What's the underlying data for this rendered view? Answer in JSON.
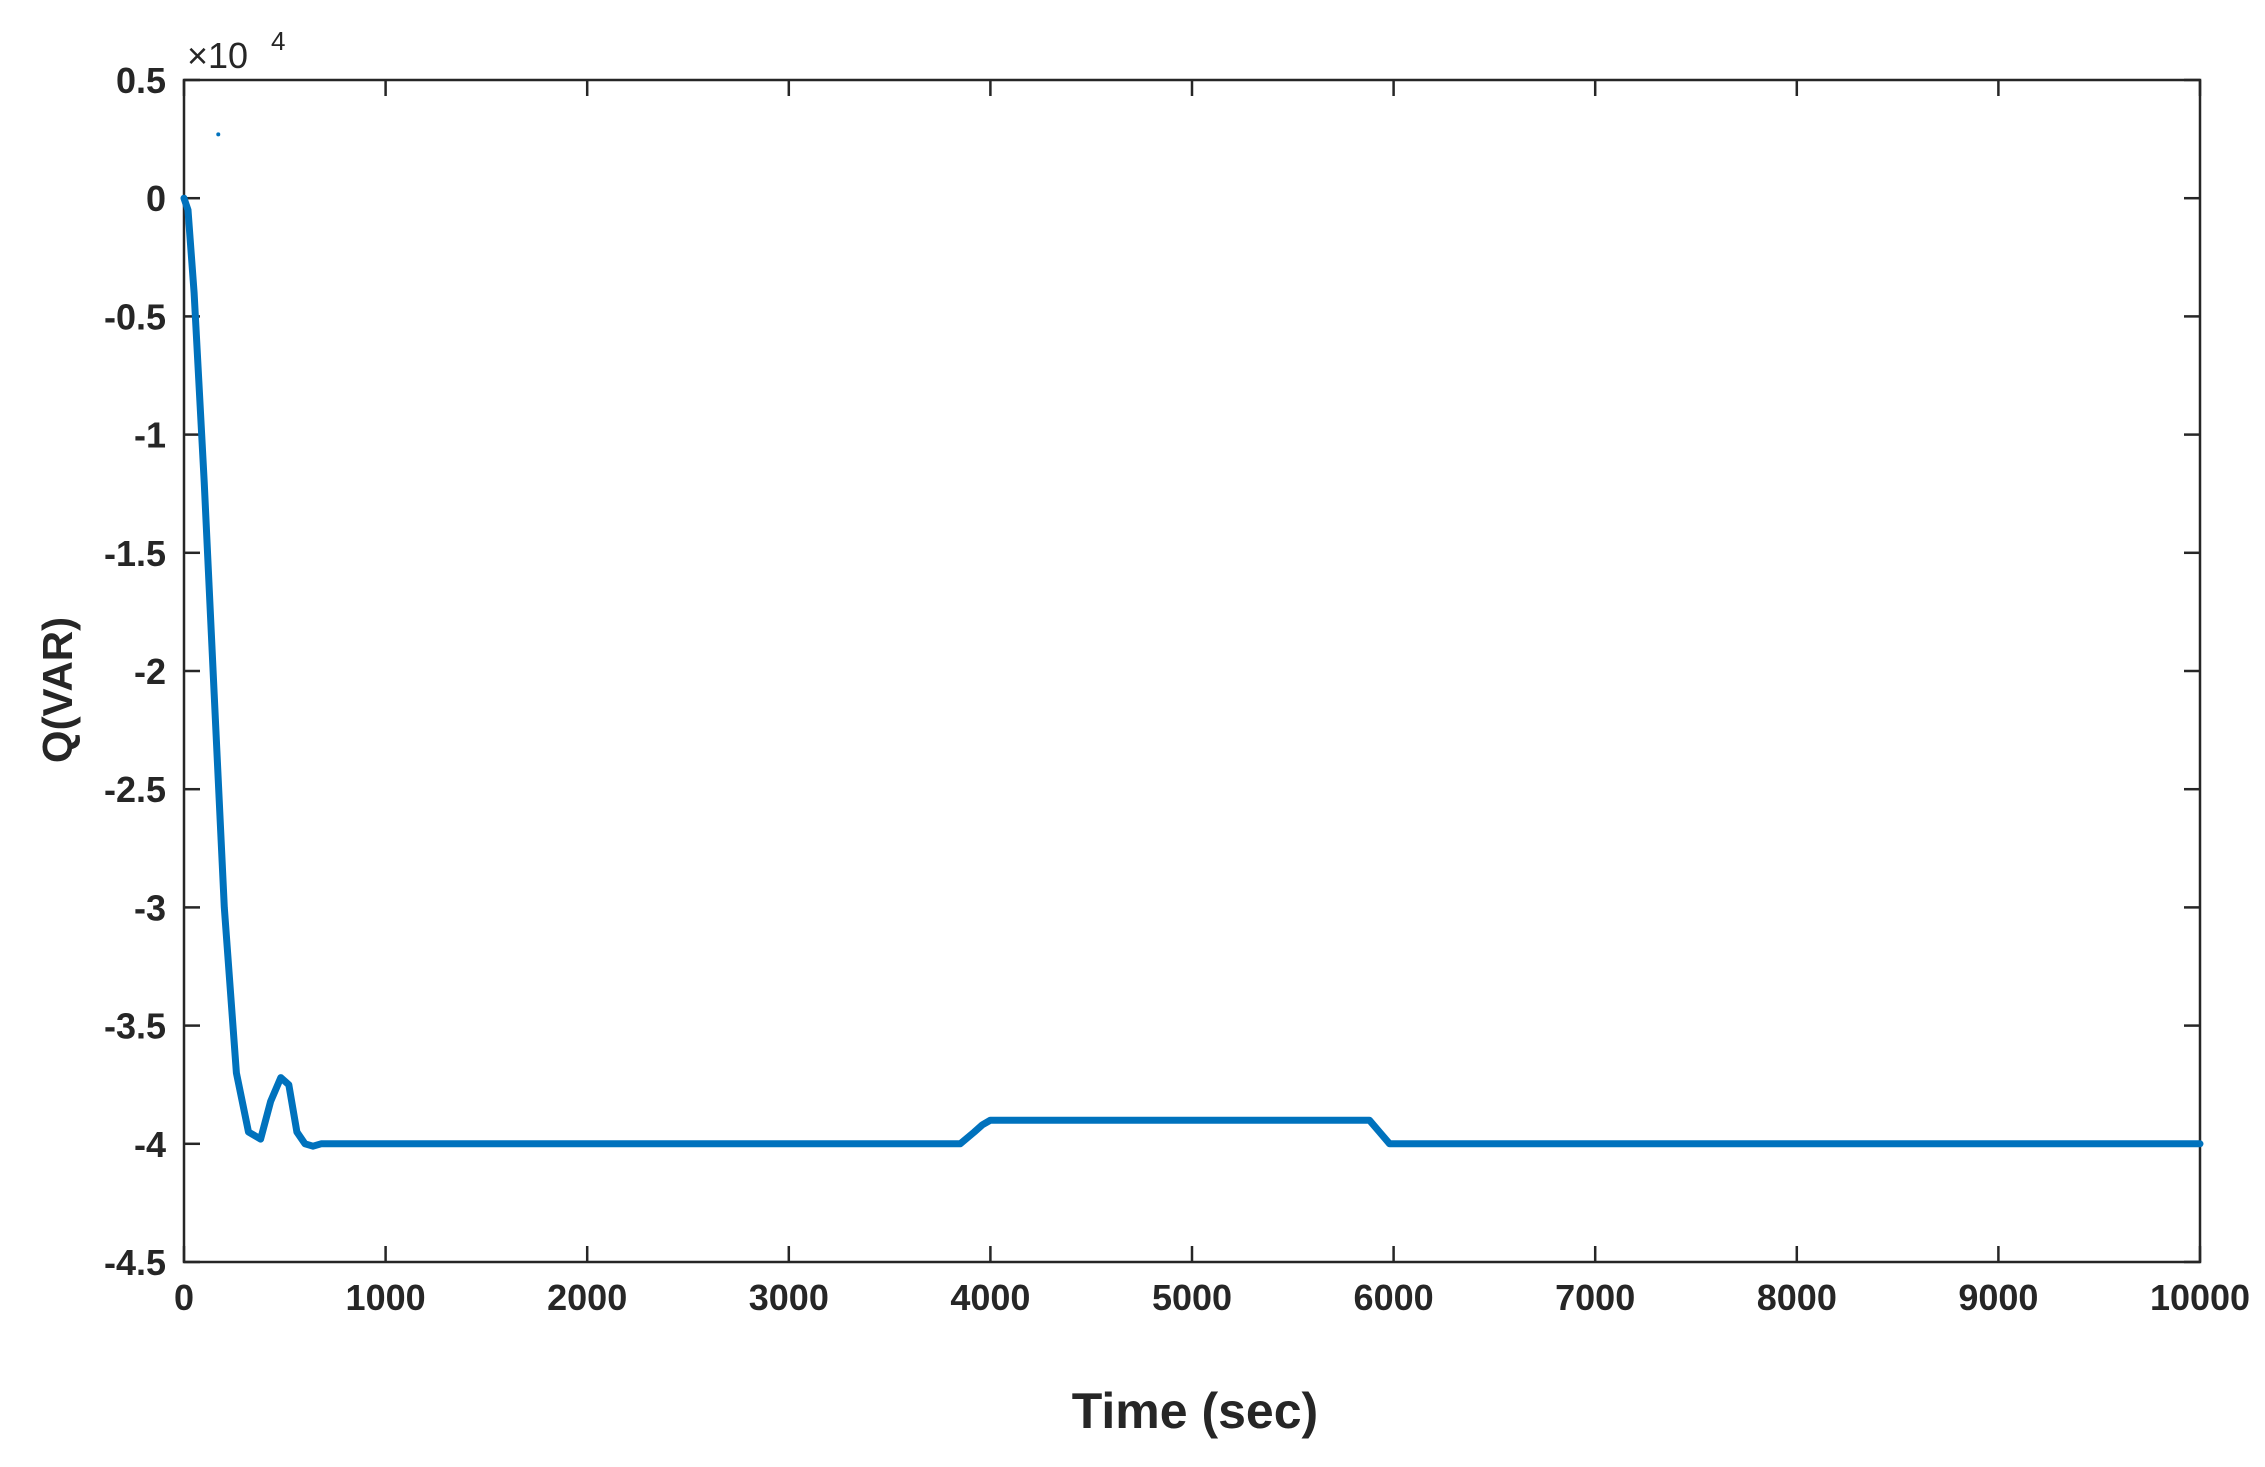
{
  "chart_data": {
    "type": "line",
    "title": "",
    "xlabel": "Time (sec)",
    "ylabel": "Q(VAR)",
    "y_exponent_label": "×10",
    "y_exponent_power": "4",
    "xlim": [
      0,
      10000
    ],
    "ylim": [
      -4.5,
      0.5
    ],
    "grid": false,
    "legend": "none",
    "x_ticks": [
      0,
      1000,
      2000,
      3000,
      4000,
      5000,
      6000,
      7000,
      8000,
      9000,
      10000
    ],
    "x_tick_labels": [
      "0",
      "1000",
      "2000",
      "3000",
      "4000",
      "5000",
      "6000",
      "7000",
      "8000",
      "9000",
      "10000"
    ],
    "y_ticks": [
      0.5,
      0,
      -0.5,
      -1,
      -1.5,
      -2,
      -2.5,
      -3,
      -3.5,
      -4,
      -4.5
    ],
    "y_tick_labels": [
      "0.5",
      "0",
      "-0.5",
      "-1",
      "-1.5",
      "-2",
      "-2.5",
      "-3",
      "-3.5",
      "-4",
      "-4.5"
    ],
    "series": [
      {
        "color": "#0072BD",
        "x": [
          0,
          20,
          50,
          100,
          150,
          200,
          260,
          320,
          380,
          430,
          480,
          520,
          560,
          600,
          640,
          680,
          720,
          800,
          1000,
          2000,
          3000,
          3850,
          3920,
          3960,
          4000,
          5000,
          5800,
          5880,
          5930,
          5980,
          7000,
          8000,
          9000,
          10000
        ],
        "y": [
          0,
          -0.05,
          -0.4,
          -1.2,
          -2.1,
          -3.0,
          -3.7,
          -3.95,
          -3.98,
          -3.82,
          -3.72,
          -3.75,
          -3.95,
          -4.0,
          -4.01,
          -4.0,
          -4.0,
          -4.0,
          -4.0,
          -4.0,
          -4.0,
          -4.0,
          -3.95,
          -3.92,
          -3.9,
          -3.9,
          -3.9,
          -3.9,
          -3.95,
          -4.0,
          -4.0,
          -4.0,
          -4.0,
          -4.0
        ]
      }
    ],
    "stray_point": {
      "x": 170,
      "y": 0.27,
      "color": "#0072BD"
    }
  }
}
